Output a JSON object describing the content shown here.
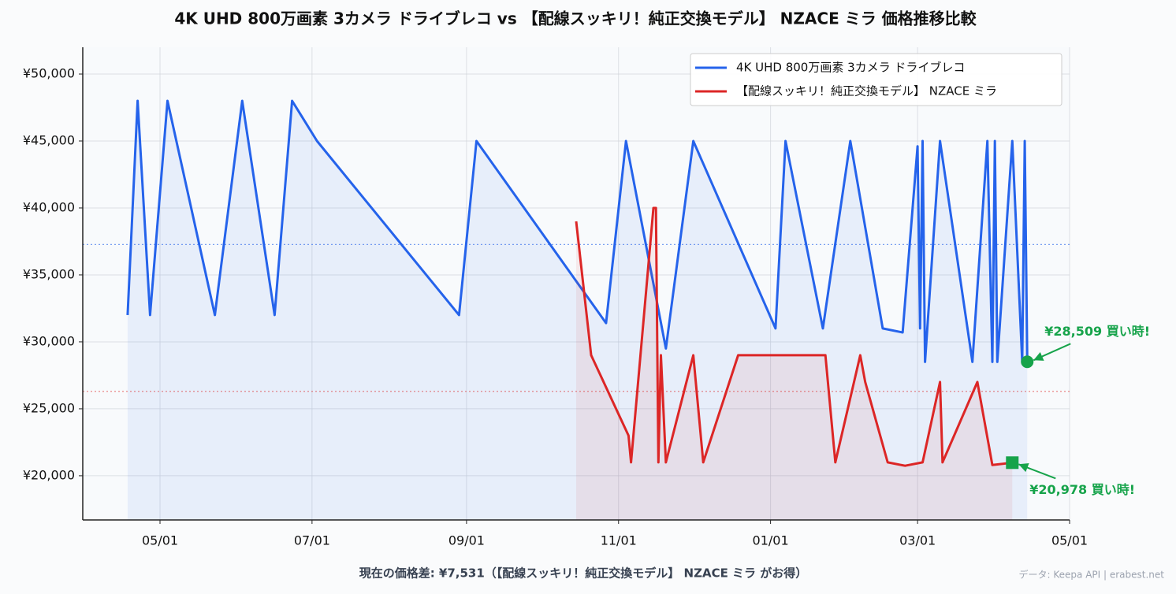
{
  "chart_data": {
    "type": "line",
    "title": "4K UHD 800万画素 3カメラ ドライブレコ vs 【配線スッキリ！純正交換モデル】 NZACE ミラ 価格推移比較",
    "footer": "現在の価格差: ¥7,531（【配線スッキリ！純正交換モデル】 NZACE ミラ がお得）",
    "source": "データ: Keepa API | erabest.net",
    "xlim": [
      "03/31",
      "05/01"
    ],
    "xticks": [
      "05/01",
      "07/01",
      "09/01",
      "11/01",
      "01/01",
      "03/01",
      "05/01"
    ],
    "ylim": [
      16700,
      52000
    ],
    "yticks": [
      {
        "value": 20000,
        "label": "¥20,000"
      },
      {
        "value": 25000,
        "label": "¥25,000"
      },
      {
        "value": 30000,
        "label": "¥30,000"
      },
      {
        "value": 35000,
        "label": "¥35,000"
      },
      {
        "value": 40000,
        "label": "¥40,000"
      },
      {
        "value": 45000,
        "label": "¥45,000"
      },
      {
        "value": 50000,
        "label": "¥50,000"
      }
    ],
    "grid": true,
    "legend": "upper right",
    "annotation_color": "#16a34a",
    "series": [
      {
        "name": "4K UHD 800万画素 3カメラ ドライブレコ",
        "color": "#2563eb",
        "mean": 37270,
        "end_marker": "circle",
        "end_label": "¥28,509  買い時!",
        "end_label_position": "above",
        "x": [
          "04/18",
          "04/22",
          "04/27",
          "05/04",
          "05/23",
          "06/03",
          "06/16",
          "06/23",
          "07/03",
          "08/29",
          "09/05",
          "10/27",
          "11/04",
          "11/20",
          "12/01",
          "01/03",
          "01/07",
          "01/22",
          "02/02",
          "02/15",
          "02/23",
          "03/01",
          "03/02",
          "03/03",
          "03/04",
          "03/10",
          "03/23",
          "03/29",
          "03/31",
          "04/01",
          "04/02",
          "04/08",
          "04/12",
          "04/13",
          "04/14"
        ],
        "values": [
          32000,
          48000,
          32000,
          48000,
          32000,
          48000,
          32000,
          48000,
          45000,
          32000,
          45000,
          31400,
          45000,
          29500,
          45000,
          31000,
          45000,
          31000,
          45000,
          31000,
          30700,
          44600,
          31000,
          45000,
          28500,
          45000,
          28500,
          45000,
          28500,
          45000,
          28500,
          45000,
          28500,
          45000,
          28509
        ]
      },
      {
        "name": "【配線スッキリ！純正交換モデル】 NZACE ミラ",
        "color": "#dc2626",
        "mean": 26300,
        "end_marker": "square",
        "end_label": "¥20,978  買い時!",
        "end_label_position": "below",
        "x": [
          "10/15",
          "10/21",
          "11/05",
          "11/06",
          "11/15",
          "11/16",
          "11/17",
          "11/18",
          "11/20",
          "12/01",
          "12/05",
          "12/19",
          "01/23",
          "01/27",
          "02/06",
          "02/08",
          "02/17",
          "02/24",
          "03/03",
          "03/10",
          "03/11",
          "03/25",
          "03/31",
          "04/08"
        ],
        "values": [
          39000,
          29000,
          23000,
          21000,
          40000,
          40000,
          21000,
          29000,
          21000,
          29000,
          21000,
          29000,
          29000,
          21000,
          29000,
          27000,
          21000,
          20750,
          21000,
          27000,
          21000,
          27000,
          20800,
          20978
        ]
      }
    ]
  }
}
